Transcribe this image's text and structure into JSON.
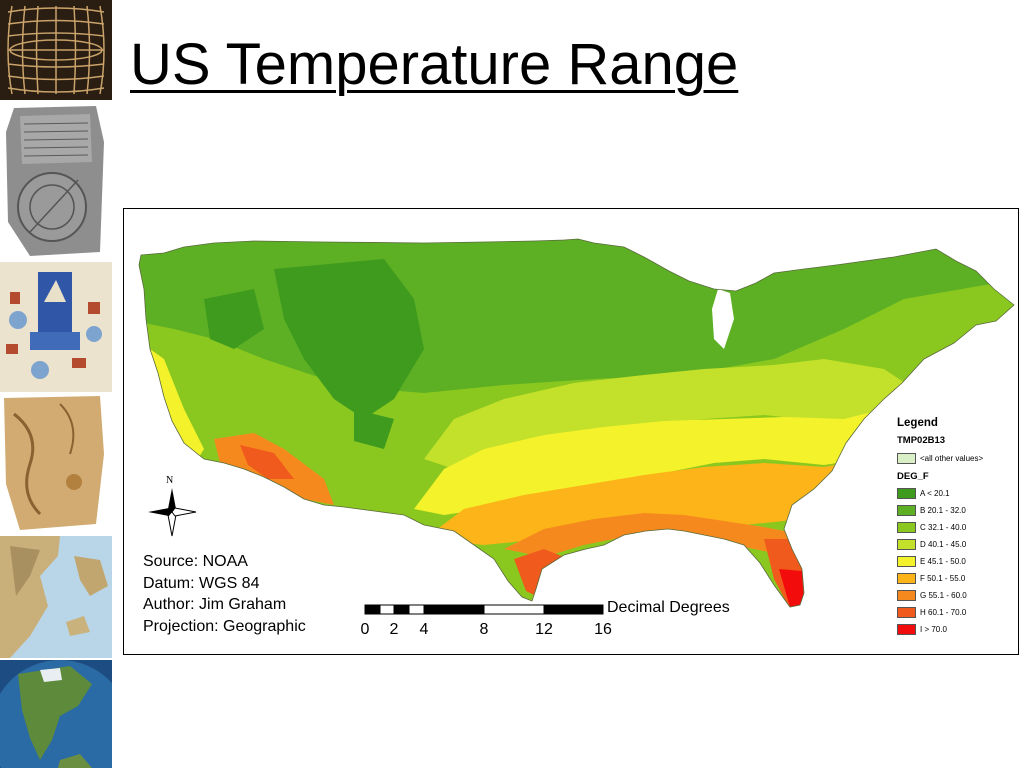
{
  "title": "US Temperature Range",
  "thumbnails": [
    {
      "name": "grid-map-thumbnail"
    },
    {
      "name": "clay-tablet-map-thumbnail"
    },
    {
      "name": "medieval-map-thumbnail"
    },
    {
      "name": "parchment-map-thumbnail"
    },
    {
      "name": "relief-map-thumbnail"
    },
    {
      "name": "globe-thumbnail"
    }
  ],
  "map": {
    "north_label": "N",
    "info": {
      "source": "Source: NOAA",
      "datum": "Datum: WGS 84",
      "author": "Author: Jim Graham",
      "projection": "Projection: Geographic"
    },
    "scale": {
      "unit": "Decimal Degrees",
      "ticks": [
        "0",
        "2",
        "4",
        "8",
        "12",
        "16"
      ]
    },
    "legend": {
      "title": "Legend",
      "layer": "TMP02B13",
      "other_label": "<all other values>",
      "other_color": "#d9f0c6",
      "field": "DEG_F",
      "classes": [
        {
          "label": "A < 20.1",
          "color": "#3f9b1e"
        },
        {
          "label": "B 20.1 - 32.0",
          "color": "#5db024"
        },
        {
          "label": "C 32.1 - 40.0",
          "color": "#8ac820"
        },
        {
          "label": "D 40.1 - 45.0",
          "color": "#c3e12b"
        },
        {
          "label": "E 45.1 - 50.0",
          "color": "#f4f22a"
        },
        {
          "label": "F 50.1 - 55.0",
          "color": "#fcb418"
        },
        {
          "label": "G 55.1 - 60.0",
          "color": "#f6891e"
        },
        {
          "label": "H 60.1 - 70.0",
          "color": "#f05a1c"
        },
        {
          "label": "I > 70.0",
          "color": "#f20c0c"
        }
      ]
    }
  }
}
